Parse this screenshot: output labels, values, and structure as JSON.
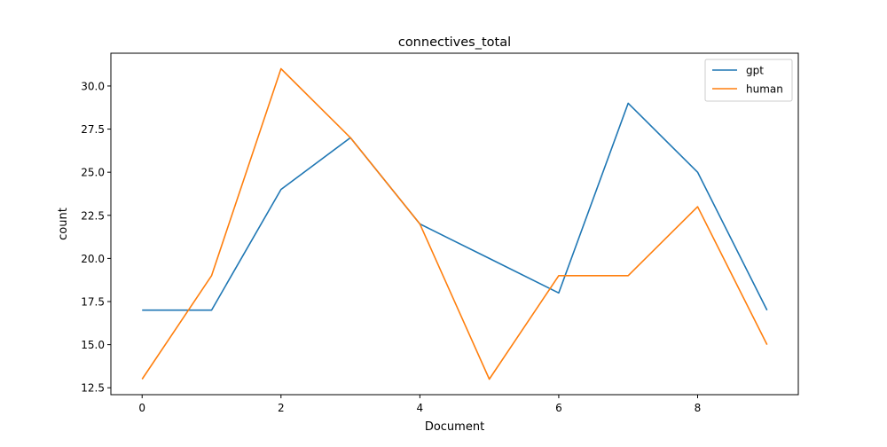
{
  "chart_data": {
    "type": "line",
    "title": "connectives_total",
    "xlabel": "Document",
    "ylabel": "count",
    "x": [
      0,
      1,
      2,
      3,
      4,
      5,
      6,
      7,
      8,
      9
    ],
    "xlim": [
      -0.45,
      9.45
    ],
    "ylim": [
      12.1,
      31.9
    ],
    "xticks": [
      0,
      2,
      4,
      6,
      8
    ],
    "xtick_labels": [
      "0",
      "2",
      "4",
      "6",
      "8"
    ],
    "yticks": [
      12.5,
      15.0,
      17.5,
      20.0,
      22.5,
      25.0,
      27.5,
      30.0
    ],
    "ytick_labels": [
      "12.5",
      "15.0",
      "17.5",
      "20.0",
      "22.5",
      "25.0",
      "27.5",
      "30.0"
    ],
    "grid": false,
    "legend_position": "top-right",
    "series": [
      {
        "name": "gpt",
        "color": "#1f77b4",
        "values": [
          17,
          17,
          24,
          27,
          22,
          20,
          18,
          29,
          25,
          17
        ]
      },
      {
        "name": "human",
        "color": "#ff7f0e",
        "values": [
          13,
          19,
          31,
          27,
          22,
          13,
          19,
          19,
          23,
          15
        ]
      }
    ]
  }
}
